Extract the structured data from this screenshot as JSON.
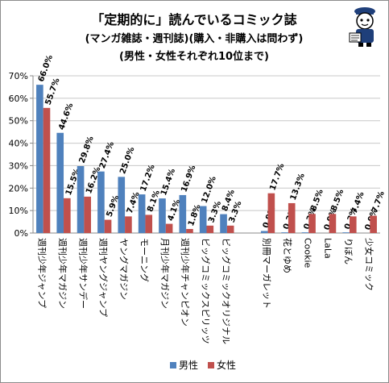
{
  "chart_data": {
    "type": "bar",
    "title_lines": [
      "「定期的に」読んでいるコミック誌",
      "(マンガ雑誌・週刊誌)(購入・非購入は問わず)",
      "(男性・女性それぞれ10位まで)"
    ],
    "categories": [
      "週刊少年ジャンプ",
      "週刊少年マガジン",
      "週刊少年サンデー",
      "週刊ヤングジャンプ",
      "ヤングマガジン",
      "モーニング",
      "月刊少年マガジン",
      "週刊少年チャンピオン",
      "ビッグコミックスピリッツ",
      "ビッグコミックオリジナル",
      "別冊マーガレット",
      "花とゆめ",
      "Cookie",
      "LaLa",
      "りぼん",
      "少女コミック"
    ],
    "group_gap_after_index": 9,
    "series": [
      {
        "name": "男性",
        "color": "#4f81bd",
        "values": [
          66.0,
          44.6,
          29.8,
          27.4,
          25.0,
          17.2,
          15.4,
          16.9,
          12.0,
          8.4,
          0.9,
          0.3,
          0.3,
          0.0,
          0.3,
          0.0
        ],
        "labels": [
          "66.0%",
          "44.6%",
          "29.8%",
          "27.4%",
          "25.0%",
          "17.2%",
          "15.4%",
          "16.9%",
          "12.0%",
          "8.4%",
          "0.9%",
          "0.3%",
          "0.3%",
          "0.0%",
          "0.3%",
          "0.0%"
        ]
      },
      {
        "name": "女性",
        "color": "#c0504d",
        "values": [
          55.7,
          15.5,
          16.2,
          5.9,
          7.4,
          8.1,
          4.1,
          1.8,
          3.3,
          3.3,
          17.7,
          13.3,
          8.5,
          8.5,
          7.4,
          7.7
        ],
        "labels": [
          "55.7%",
          "15.5%",
          "16.2%",
          "5.9%",
          "7.4%",
          "8.1%",
          "4.1%",
          "1.8%",
          "3.3%",
          "3.3%",
          "17.7%",
          "13.3%",
          "8.5%",
          "8.5%",
          "7.4%",
          "7.7%"
        ]
      }
    ],
    "ylim": [
      0,
      70
    ],
    "yticks": [
      0,
      10,
      20,
      30,
      40,
      50,
      60,
      70
    ],
    "ytick_labels": [
      "0%",
      "10%",
      "20%",
      "30%",
      "40%",
      "50%",
      "60%",
      "70%"
    ],
    "grid": true,
    "legend_position": "bottom"
  }
}
